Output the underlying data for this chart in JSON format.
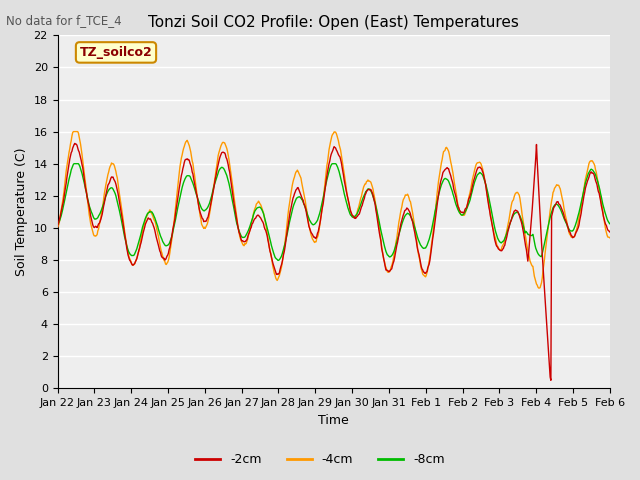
{
  "title": "Tonzi Soil CO2 Profile: Open (East) Temperatures",
  "top_label": "No data for f_TCE_4",
  "ylabel": "Soil Temperature (C)",
  "xlabel": "Time",
  "legend_label": "TZ_soilco2",
  "ylim": [
    0,
    22
  ],
  "series_labels": [
    "-2cm",
    "-4cm",
    "-8cm"
  ],
  "series_colors": [
    "#cc0000",
    "#ff9900",
    "#00bb00"
  ],
  "x_tick_labels": [
    "Jan 22",
    "Jan 23",
    "Jan 24",
    "Jan 25",
    "Jan 26",
    "Jan 27",
    "Jan 28",
    "Jan 29",
    "Jan 30",
    "Jan 31",
    "Feb 1",
    "Feb 2",
    "Feb 3",
    "Feb 4",
    "Feb 5",
    "Feb 6"
  ],
  "background_color": "#e0e0e0",
  "plot_bg_color": "#eeeeee",
  "grid_color": "#ffffff",
  "title_fontsize": 11,
  "tick_fontsize": 8,
  "label_fontsize": 9
}
